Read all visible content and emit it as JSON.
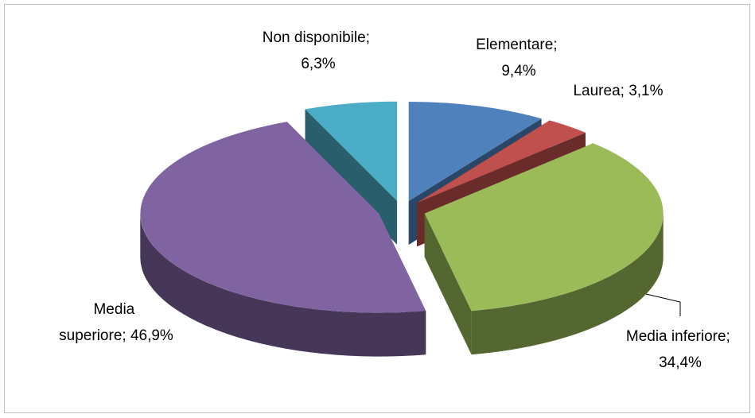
{
  "chart_data": {
    "type": "pie3d",
    "values": [
      9.4,
      3.1,
      34.4,
      46.9,
      6.3
    ],
    "value_labels": [
      "Elementare; 9,4%",
      "Laurea; 3,1%",
      "Media inferiore; 34,4%",
      "Media superiore; 46,9%",
      "Non disponibile; 6,3%"
    ],
    "colors": [
      "#4f81bd",
      "#c0504d",
      "#9bbb59",
      "#8064a2",
      "#4bacc6"
    ]
  }
}
